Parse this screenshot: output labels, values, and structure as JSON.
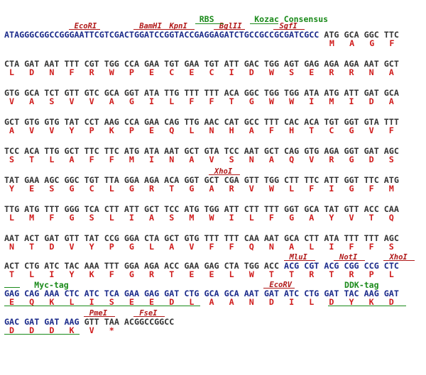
{
  "lines": [
    {
      "dna": "ATAGGGCGGCCGGGAATTCGTCGACTGGATCCGGTACCGAGGAGATCTGCCGCCGCGATCGCC ATG GCA GGC TTC",
      "aa": "M   A   G   F",
      "sites": [
        "EcoRI",
        "BamHI",
        "KpnI",
        "BglII",
        "SgfI"
      ],
      "features": [
        "RBS",
        "Kozac Consensus"
      ]
    },
    {
      "dna": "CTA GAT AAT TTT CGT TGG CCA GAA TGT GAA TGT ATT GAC TGG AGT GAG AGA AGA AAT GCT",
      "aa": "L   D   N   F   R   W   P   E   C   E   C   I   D   W   S   E   R   R   N   A"
    },
    {
      "dna": "GTG GCA TCT GTT GTC GCA GGT ATA TTG TTT TTT ACA GGC TGG TGG ATA ATG ATT GAT GCA",
      "aa": "V   A   S   V   V   A   G   I   L   F   F   T   G   W   W   I   M   I   D   A"
    },
    {
      "dna": "GCT GTG GTG TAT CCT AAG CCA GAA CAG TTG AAC CAT GCC TTT CAC ACA TGT GGT GTA TTT",
      "aa": "A   V   V   Y   P   K   P   E   Q   L   N   H   A   F   H   T   C   G   V   F"
    },
    {
      "dna": "TCC ACA TTG GCT TTC TTC ATG ATA AAT GCT GTA TCC AAT GCT CAG GTG AGA GGT GAT AGC",
      "aa": "S   T   L   A   F   F   M   I   N   A   V   S   N   A   Q   V   R   G   D   S"
    },
    {
      "dna": "TAT GAA AGC GGC TGT TTA GGA AGA ACA GGT GCT CGA GTT TGG CTT TTC ATT GGT TTC ATG",
      "aa": "Y   E   S   G   C   L   G   R   T   G   A   R   V   W   L   F   I   G   F   M",
      "sites": [
        "XhoI"
      ]
    },
    {
      "dna": "TTG ATG TTT GGG TCA CTT ATT GCT TCC ATG TGG ATT CTT TTT GGT GCA TAT GTT ACC CAA",
      "aa": "L   M   F   G   S   L   I   A   S   M   W   I   L   F   G   A   Y   V   T   Q"
    },
    {
      "dna": "AAT ACT GAT GTT TAT CCG GGA CTA GCT GTG TTT TTT CAA AAT GCA CTT ATA TTT TTT AGC",
      "aa": "N   T   D   V   Y   P   G   L   A   V   F   F   Q   N   A   L   I   F   F   S"
    },
    {
      "dna": "ACT CTG ATC TAC AAA TTT GGA AGA ACC GAA GAG CTA TGG ACC ACG CGT ACG CGG CCG CTC",
      "aa": "T   L   I   Y   K   F   G   R   T   E   E   L   W   T   T   R   T   R   P   L",
      "sites": [
        "MluI",
        "NotI",
        "XhoI"
      ]
    },
    {
      "dna": "GAG CAG AAA CTC ATC TCA GAA GAG GAT CTG GCA GCA AAT GAT ATC CTG GAT TAC AAG GAT",
      "aa": "E   Q   K   L   I   S   E   E   D   L   A   A   N   D   I   L   D   Y   K   D",
      "sites": [
        "EcoRV"
      ],
      "features": [
        "Myc-tag",
        "DDK-tag"
      ]
    },
    {
      "dna": "GAC GAT GAT AAG GTT TAA ACGGCCGGCC",
      "aa": "D   D   D   K   V   *",
      "sites": [
        "PmeI",
        "FseI"
      ]
    }
  ]
}
